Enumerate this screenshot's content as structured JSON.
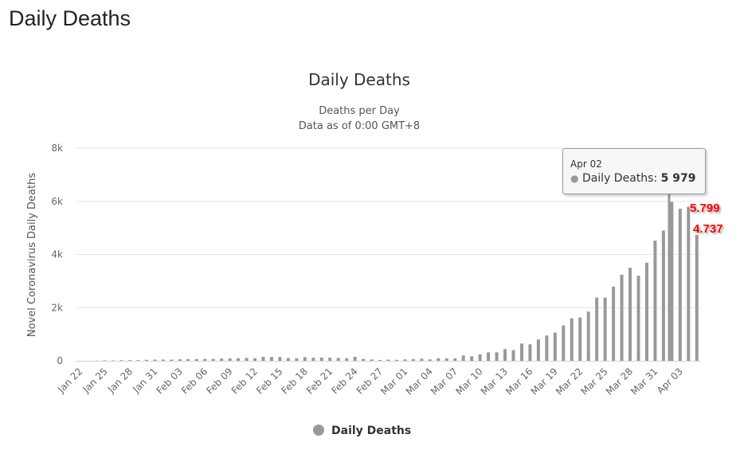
{
  "page_title": "Daily Deaths",
  "chart_data": {
    "type": "bar",
    "title": "Daily Deaths",
    "subtitle": "Deaths per Day",
    "subtitle2": "Data as of 0:00 GMT+8",
    "ylabel": "Novel Coronavirus Daily Deaths",
    "xlabel": "",
    "ylim": [
      0,
      8000
    ],
    "yticks": [
      0,
      2000,
      4000,
      6000,
      8000
    ],
    "ytick_labels": [
      "0",
      "2k",
      "4k",
      "6k",
      "8k"
    ],
    "grid": true,
    "legend": {
      "position": "bottom",
      "entries": [
        "Daily Deaths"
      ]
    },
    "series_color": "#999999",
    "categories": [
      "Jan 22",
      "Jan 23",
      "Jan 24",
      "Jan 25",
      "Jan 26",
      "Jan 27",
      "Jan 28",
      "Jan 29",
      "Jan 30",
      "Jan 31",
      "Feb 01",
      "Feb 02",
      "Feb 03",
      "Feb 04",
      "Feb 05",
      "Feb 06",
      "Feb 07",
      "Feb 08",
      "Feb 09",
      "Feb 10",
      "Feb 11",
      "Feb 12",
      "Feb 13",
      "Feb 14",
      "Feb 15",
      "Feb 16",
      "Feb 17",
      "Feb 18",
      "Feb 19",
      "Feb 20",
      "Feb 21",
      "Feb 22",
      "Feb 23",
      "Feb 24",
      "Feb 25",
      "Feb 26",
      "Feb 27",
      "Feb 28",
      "Feb 29",
      "Mar 01",
      "Mar 02",
      "Mar 03",
      "Mar 04",
      "Mar 05",
      "Mar 06",
      "Mar 07",
      "Mar 08",
      "Mar 09",
      "Mar 10",
      "Mar 11",
      "Mar 12",
      "Mar 13",
      "Mar 14",
      "Mar 15",
      "Mar 16",
      "Mar 17",
      "Mar 18",
      "Mar 19",
      "Mar 20",
      "Mar 21",
      "Mar 22",
      "Mar 23",
      "Mar 24",
      "Mar 25",
      "Mar 26",
      "Mar 27",
      "Mar 28",
      "Mar 29",
      "Mar 30",
      "Mar 31",
      "Apr 01",
      "Apr 02",
      "Apr 03",
      "Apr 04",
      "Apr 05"
    ],
    "xtick_every": 3,
    "values": [
      0,
      1,
      8,
      16,
      14,
      24,
      26,
      26,
      38,
      43,
      46,
      45,
      57,
      64,
      66,
      73,
      73,
      86,
      89,
      97,
      108,
      97,
      150,
      143,
      142,
      105,
      98,
      139,
      115,
      125,
      117,
      109,
      97,
      150,
      71,
      52,
      29,
      44,
      37,
      55,
      68,
      79,
      52,
      96,
      90,
      92,
      200,
      170,
      240,
      320,
      320,
      440,
      400,
      650,
      620,
      800,
      950,
      1060,
      1330,
      1600,
      1630,
      1850,
      2380,
      2380,
      2790,
      3240,
      3500,
      3200,
      3690,
      4520,
      4900,
      5979,
      5720,
      5799,
      4737
    ],
    "tooltip": {
      "date": "Apr 02",
      "series": "Daily Deaths",
      "value": "5 979"
    },
    "annotations": [
      "5.799",
      "4.737"
    ]
  }
}
